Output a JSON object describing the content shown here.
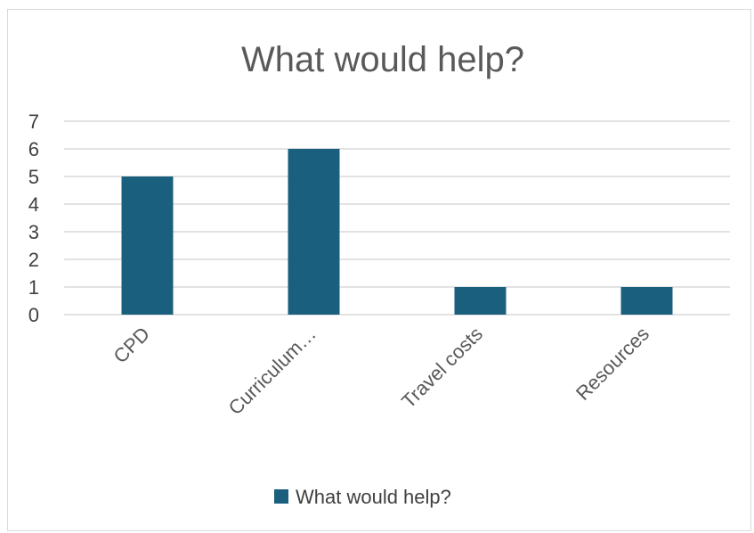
{
  "chart_data": {
    "type": "bar",
    "title": "What would help?",
    "categories": [
      "CPD",
      "Curriculum…",
      "Travel costs",
      "Resources"
    ],
    "series": [
      {
        "name": "What would help?",
        "values": [
          5,
          6,
          1,
          1
        ],
        "color": "#1b5f7f"
      }
    ],
    "y_ticks": [
      "0",
      "1",
      "2",
      "3",
      "4",
      "5",
      "6",
      "7"
    ],
    "ylim": [
      0,
      7
    ],
    "grid": true,
    "legend": "bottom"
  }
}
